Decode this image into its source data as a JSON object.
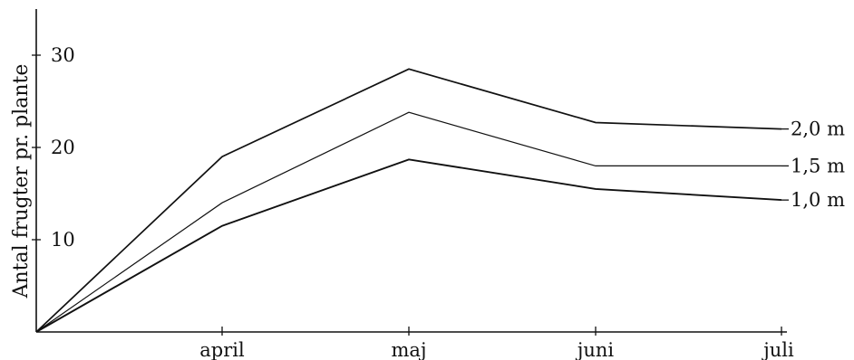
{
  "chart_data": {
    "type": "line",
    "title": "",
    "xlabel": "",
    "ylabel": "Antal frugter pr. plante",
    "categories": [
      "",
      "april",
      "maj",
      "juni",
      "juli"
    ],
    "ylim": [
      0,
      35
    ],
    "yticks": [
      10,
      20,
      30
    ],
    "grid": false,
    "legend": "line-end labels",
    "series": [
      {
        "name": "2,0 m",
        "values": [
          0,
          19,
          28.5,
          22.7,
          22
        ]
      },
      {
        "name": "1,5 m",
        "values": [
          0,
          14,
          23.8,
          18,
          18
        ]
      },
      {
        "name": "1,0 m",
        "values": [
          0,
          11.5,
          18.7,
          15.5,
          14.3
        ]
      }
    ],
    "colors": {
      "line": "#111111",
      "text": "#111111"
    }
  }
}
